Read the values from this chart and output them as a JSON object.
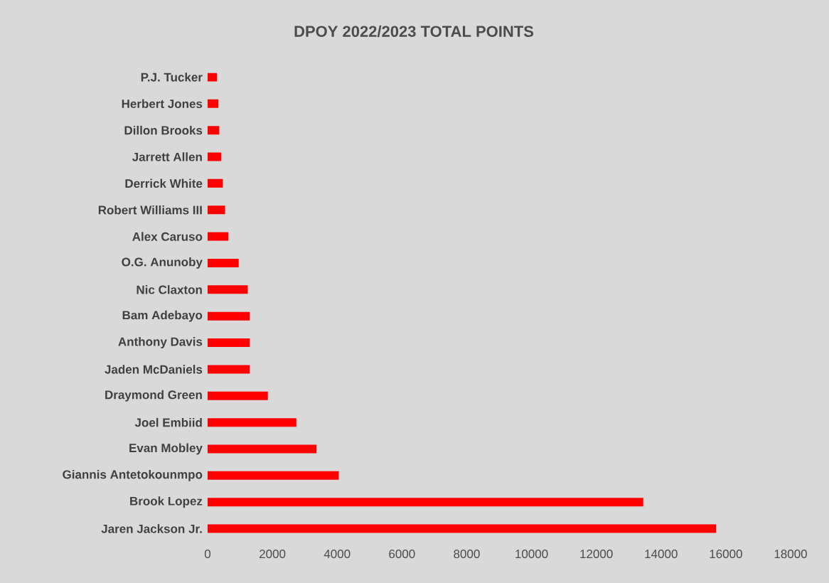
{
  "chart_data": {
    "type": "bar",
    "orientation": "horizontal",
    "title": "DPOY 2022/2023 TOTAL POINTS",
    "categories": [
      "P.J. Tucker",
      "Herbert Jones",
      "Dillon Brooks",
      "Jarrett Allen",
      "Derrick White",
      "Robert Williams III",
      "Alex Caruso",
      "O.G. Anunoby",
      "Nic Claxton",
      "Bam Adebayo",
      "Anthony Davis",
      "Jaden McDaniels",
      "Draymond Green",
      "Joel Embiid",
      "Evan Mobley",
      "Giannis Antetokounmpo",
      "Brook Lopez",
      "Jaren Jackson Jr."
    ],
    "values": [
      290,
      330,
      360,
      420,
      470,
      540,
      640,
      960,
      1240,
      1300,
      1300,
      1300,
      1860,
      2740,
      3360,
      4050,
      13450,
      15700
    ],
    "color": "#ff0000",
    "xlim": [
      0,
      18000
    ],
    "xticks": [
      0,
      2000,
      4000,
      6000,
      8000,
      10000,
      12000,
      14000,
      16000,
      18000
    ]
  }
}
